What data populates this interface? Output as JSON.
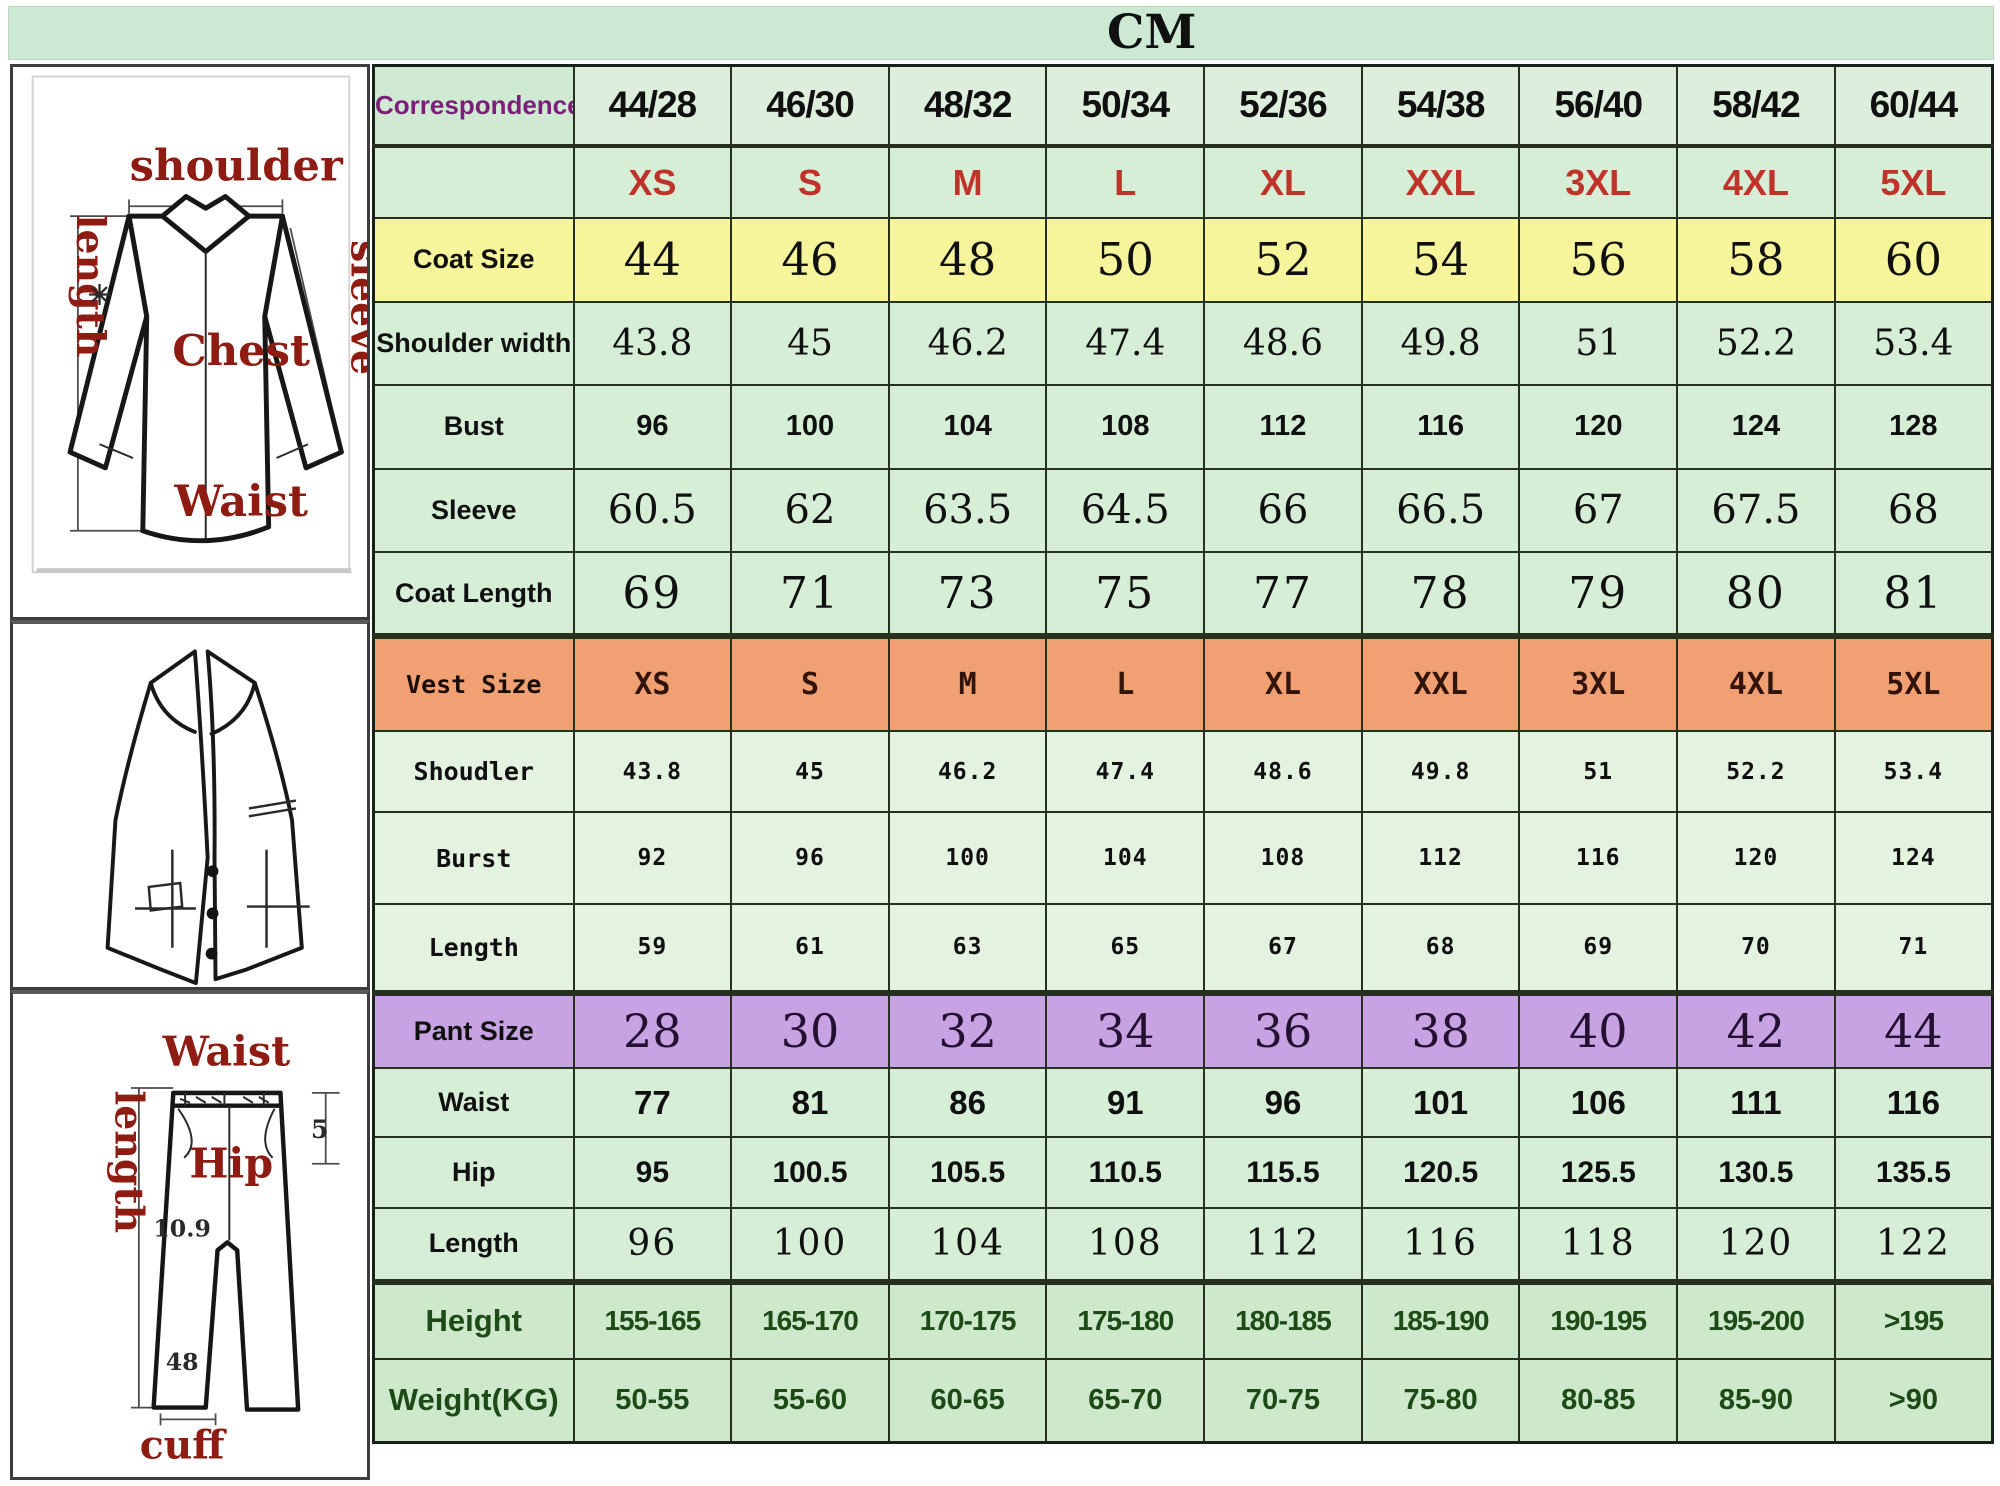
{
  "banner": {
    "title": "CM"
  },
  "diagrams": {
    "coat": {
      "top_label": "shoulder",
      "left_label": "length",
      "right_label": "sleeve",
      "chest_label": "Chest",
      "waist_label": "Waist",
      "star_mark": "✳"
    },
    "pants": {
      "top_label": "Waist",
      "left_label": "length",
      "hip_label": "Hip",
      "bottom_label": "cuff",
      "artifacts": [
        "5",
        "10.9",
        "48"
      ]
    }
  },
  "colors": {
    "banner_green": "#cde9d3",
    "cell_green": "#d6eed6",
    "cell_green_light": "#e4f2e0",
    "header_cell_green": "#ddefdc",
    "row_yellow": "#f6f59c",
    "row_orange": "#f0a072",
    "row_purple": "#c7a3e4",
    "size_red": "#c0332a",
    "label_purple": "#7c1f7a",
    "dark_green_text": "#1d4a17",
    "diagram_red": "#8e1c12",
    "grid": "#25301f"
  },
  "table": {
    "rows": [
      {
        "kind": "correspondence",
        "label": "Correspondence",
        "values": [
          "44/28",
          "46/30",
          "48/32",
          "50/34",
          "52/36",
          "54/38",
          "56/40",
          "58/42",
          "60/44"
        ]
      },
      {
        "kind": "letters",
        "label": "",
        "values": [
          "XS",
          "S",
          "M",
          "L",
          "XL",
          "XXL",
          "3XL",
          "4XL",
          "5XL"
        ]
      },
      {
        "kind": "coat-size",
        "label": "Coat Size",
        "values": [
          "44",
          "46",
          "48",
          "50",
          "52",
          "54",
          "56",
          "58",
          "60"
        ]
      },
      {
        "kind": "shoulder",
        "label": "Shoulder width",
        "values": [
          "43.8",
          "45",
          "46.2",
          "47.4",
          "48.6",
          "49.8",
          "51",
          "52.2",
          "53.4"
        ]
      },
      {
        "kind": "bust",
        "label": "Bust",
        "values": [
          "96",
          "100",
          "104",
          "108",
          "112",
          "116",
          "120",
          "124",
          "128"
        ]
      },
      {
        "kind": "sleeve",
        "label": "Sleeve",
        "values": [
          "60.5",
          "62",
          "63.5",
          "64.5",
          "66",
          "66.5",
          "67",
          "67.5",
          "68"
        ]
      },
      {
        "kind": "coat-length",
        "label": "Coat Length",
        "values": [
          "69",
          "71",
          "73",
          "75",
          "77",
          "78",
          "79",
          "80",
          "81"
        ]
      },
      {
        "kind": "vest-size",
        "label": "Vest Size",
        "values": [
          "XS",
          "S",
          "M",
          "L",
          "XL",
          "XXL",
          "3XL",
          "4XL",
          "5XL"
        ]
      },
      {
        "kind": "vest-shoulder",
        "label": "Shoudler",
        "values": [
          "43.8",
          "45",
          "46.2",
          "47.4",
          "48.6",
          "49.8",
          "51",
          "52.2",
          "53.4"
        ]
      },
      {
        "kind": "vest-burst",
        "label": "Burst",
        "values": [
          "92",
          "96",
          "100",
          "104",
          "108",
          "112",
          "116",
          "120",
          "124"
        ]
      },
      {
        "kind": "vest-length",
        "label": "Length",
        "values": [
          "59",
          "61",
          "63",
          "65",
          "67",
          "68",
          "69",
          "70",
          "71"
        ]
      },
      {
        "kind": "pant-size",
        "label": "Pant Size",
        "values": [
          "28",
          "30",
          "32",
          "34",
          "36",
          "38",
          "40",
          "42",
          "44"
        ]
      },
      {
        "kind": "waist",
        "label": "Waist",
        "values": [
          "77",
          "81",
          "86",
          "91",
          "96",
          "101",
          "106",
          "111",
          "116"
        ]
      },
      {
        "kind": "hip",
        "label": "Hip",
        "values": [
          "95",
          "100.5",
          "105.5",
          "110.5",
          "115.5",
          "120.5",
          "125.5",
          "130.5",
          "135.5"
        ]
      },
      {
        "kind": "pant-length",
        "label": "Length",
        "values": [
          "96",
          "100",
          "104",
          "108",
          "112",
          "116",
          "118",
          "120",
          "122"
        ]
      },
      {
        "kind": "height",
        "label": "Height",
        "values": [
          "155-165",
          "165-170",
          "170-175",
          "175-180",
          "180-185",
          "185-190",
          "190-195",
          "195-200",
          ">195"
        ]
      },
      {
        "kind": "weight",
        "label": "Weight(KG)",
        "values": [
          "50-55",
          "55-60",
          "60-65",
          "65-70",
          "70-75",
          "75-80",
          "80-85",
          "85-90",
          ">90"
        ]
      }
    ]
  }
}
